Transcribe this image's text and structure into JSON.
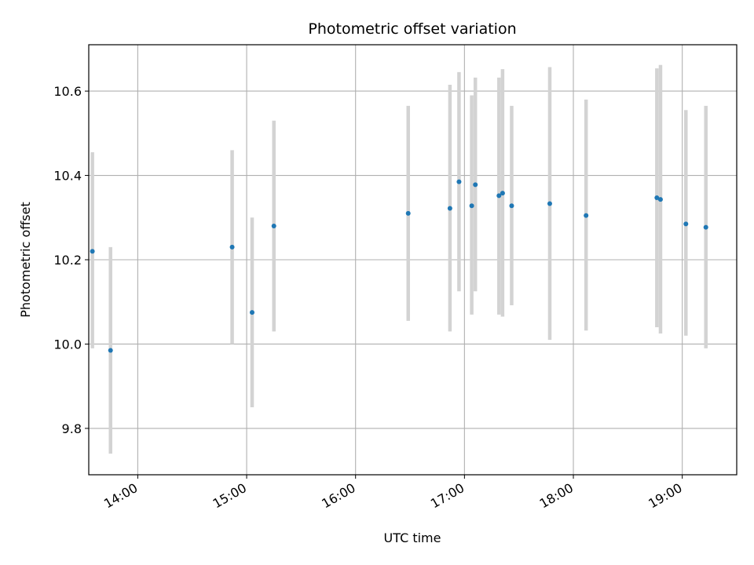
{
  "chart_data": {
    "type": "scatter",
    "title": "Photometric offset variation",
    "xlabel": "UTC time",
    "ylabel": "Photometric offset",
    "x_axis_type": "time",
    "xlim": [
      "13:33",
      "19:30"
    ],
    "ylim": [
      9.69,
      10.71
    ],
    "x_ticks": [
      "14:00",
      "15:00",
      "16:00",
      "17:00",
      "18:00",
      "19:00"
    ],
    "y_ticks": [
      9.8,
      10.0,
      10.2,
      10.4,
      10.6
    ],
    "grid": true,
    "point_color": "#1f77b4",
    "errorbar_color": "#d3d3d3",
    "points": [
      {
        "t": "13:35",
        "y": 10.22,
        "low": 9.99,
        "high": 10.455
      },
      {
        "t": "13:45",
        "y": 9.985,
        "low": 9.74,
        "high": 10.23
      },
      {
        "t": "14:52",
        "y": 10.23,
        "low": 10.0,
        "high": 10.46
      },
      {
        "t": "15:03",
        "y": 10.075,
        "low": 9.85,
        "high": 10.3
      },
      {
        "t": "15:15",
        "y": 10.28,
        "low": 10.03,
        "high": 10.53
      },
      {
        "t": "16:29",
        "y": 10.31,
        "low": 10.055,
        "high": 10.565
      },
      {
        "t": "16:52",
        "y": 10.322,
        "low": 10.03,
        "high": 10.615
      },
      {
        "t": "16:57",
        "y": 10.385,
        "low": 10.125,
        "high": 10.645
      },
      {
        "t": "17:04",
        "y": 10.328,
        "low": 10.07,
        "high": 10.59
      },
      {
        "t": "17:06",
        "y": 10.378,
        "low": 10.125,
        "high": 10.632
      },
      {
        "t": "17:19",
        "y": 10.352,
        "low": 10.07,
        "high": 10.632
      },
      {
        "t": "17:21",
        "y": 10.358,
        "low": 10.065,
        "high": 10.652
      },
      {
        "t": "17:26",
        "y": 10.328,
        "low": 10.092,
        "high": 10.565
      },
      {
        "t": "17:47",
        "y": 10.333,
        "low": 10.01,
        "high": 10.657
      },
      {
        "t": "18:07",
        "y": 10.305,
        "low": 10.032,
        "high": 10.58
      },
      {
        "t": "18:46",
        "y": 10.347,
        "low": 10.04,
        "high": 10.654
      },
      {
        "t": "18:48",
        "y": 10.343,
        "low": 10.025,
        "high": 10.662
      },
      {
        "t": "19:02",
        "y": 10.285,
        "low": 10.02,
        "high": 10.555
      },
      {
        "t": "19:13",
        "y": 10.277,
        "low": 9.99,
        "high": 10.565
      }
    ]
  }
}
